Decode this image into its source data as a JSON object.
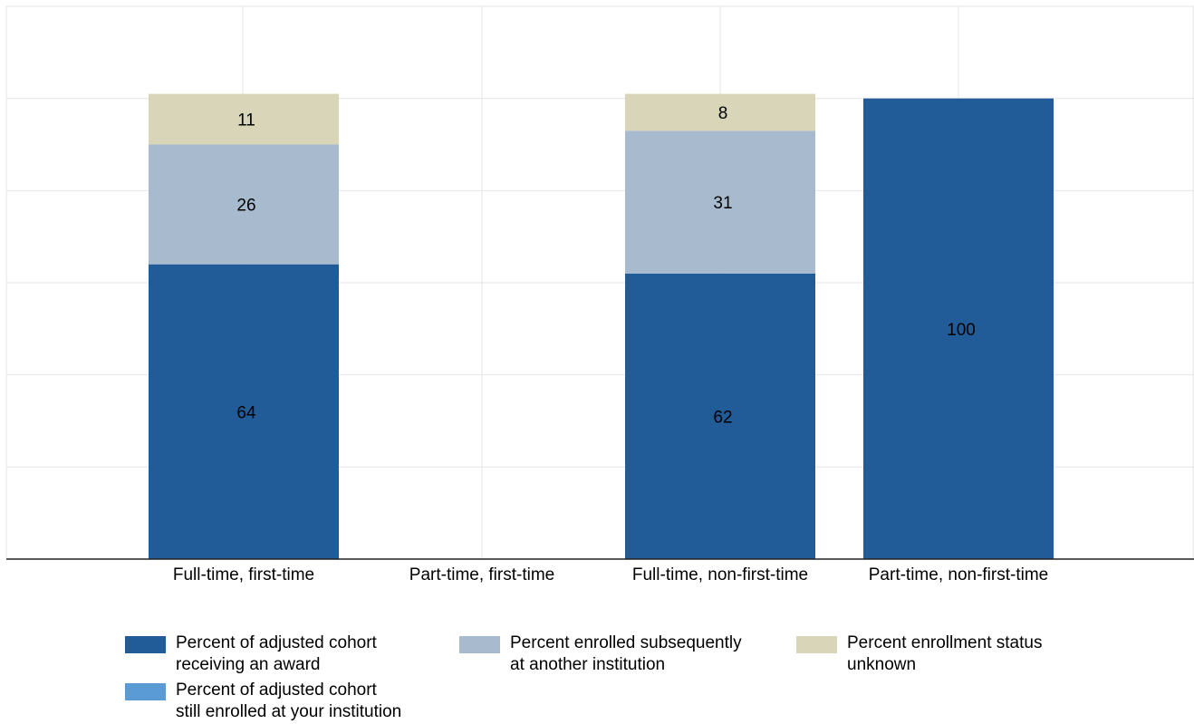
{
  "chart_data": {
    "type": "bar",
    "stacked": true,
    "title": "",
    "xlabel": "",
    "ylabel": "",
    "ylim": [
      0,
      120
    ],
    "grid": true,
    "legend_position": "bottom",
    "categories": [
      "Full-time, first-time",
      "Part-time, first-time",
      "Full-time, non-first-time",
      "Part-time, non-first-time"
    ],
    "series": [
      {
        "name": "Percent of adjusted cohort\nreceiving an award",
        "color": "#215c99",
        "values": [
          64,
          null,
          62,
          100
        ],
        "labels": [
          "64",
          "",
          "62",
          "100"
        ]
      },
      {
        "name": "Percent of adjusted cohort\nstill enrolled at your institution",
        "color": "#5b9bd5",
        "values": [
          0,
          null,
          0,
          0
        ],
        "labels": [
          "",
          "",
          "",
          ""
        ]
      },
      {
        "name": "Percent enrolled subsequently\nat another institution",
        "color": "#a8bbce",
        "values": [
          26,
          null,
          31,
          0
        ],
        "labels": [
          "26",
          "",
          "31",
          ""
        ]
      },
      {
        "name": "Percent enrollment status\nunknown",
        "color": "#d8d5b8",
        "values": [
          11,
          null,
          8,
          0
        ],
        "labels": [
          "11",
          "",
          "8",
          ""
        ]
      }
    ]
  }
}
